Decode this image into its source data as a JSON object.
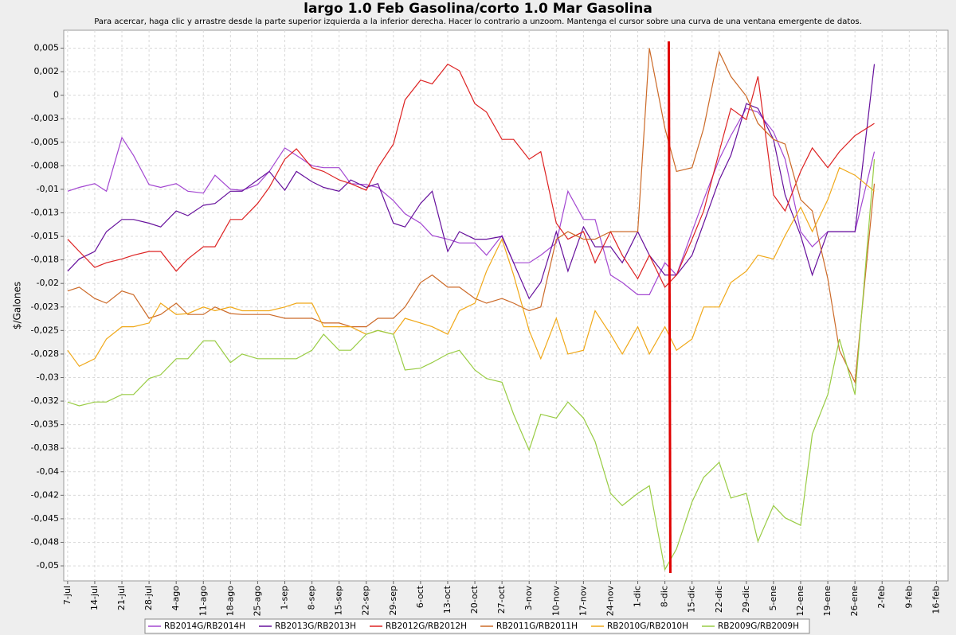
{
  "chart_data": {
    "type": "line",
    "title": "largo 1.0 Feb Gasolina/corto 1.0 Mar Gasolina",
    "subtitle": "Para acercar, haga clic y arrastre desde la parte superior izquierda a la inferior derecha. Hacer lo contrario a unzoom. Mantenga el cursor sobre una curva de una ventana emergente de datos.",
    "y_label": "$/Galones",
    "x": [
      "7-jul",
      "10-jul",
      "14-jul",
      "17-jul",
      "21-jul",
      "24-jul",
      "28-jul",
      "31-jul",
      "4-ago",
      "7-ago",
      "11-ago",
      "14-ago",
      "18-ago",
      "21-ago",
      "25-ago",
      "28-ago",
      "1-sep",
      "4-sep",
      "8-sep",
      "11-sep",
      "15-sep",
      "18-sep",
      "22-sep",
      "25-sep",
      "29-sep",
      "2-oct",
      "6-oct",
      "9-oct",
      "13-oct",
      "16-oct",
      "20-oct",
      "23-oct",
      "27-oct",
      "30-oct",
      "3-nov",
      "6-nov",
      "10-nov",
      "13-nov",
      "17-nov",
      "20-nov",
      "24-nov",
      "27-nov",
      "1-dic",
      "4-dic",
      "8-dic",
      "11-dic",
      "15-dic",
      "18-dic",
      "22-dic",
      "25-dic",
      "29-dic",
      "1-ene",
      "5-ene",
      "8-ene",
      "12-ene",
      "15-ene",
      "19-ene",
      "22-ene",
      "26-ene",
      "31-ene"
    ],
    "series": [
      {
        "name": "RB2014G/RB2014H",
        "color": "#a347d1",
        "values": [
          -0.0102,
          -0.0098,
          -0.0094,
          -0.0102,
          -0.0045,
          -0.0064,
          -0.0095,
          -0.0098,
          -0.0094,
          -0.0102,
          -0.0104,
          -0.0085,
          -0.01,
          -0.0101,
          -0.0095,
          -0.0081,
          -0.0056,
          -0.0064,
          -0.0075,
          -0.0077,
          -0.0077,
          -0.0094,
          -0.0095,
          -0.0098,
          -0.0112,
          -0.0126,
          -0.0136,
          -0.0149,
          -0.0153,
          -0.0157,
          -0.0157,
          -0.017,
          -0.0149,
          -0.0178,
          -0.0178,
          -0.017,
          -0.0157,
          -0.0102,
          -0.0132,
          -0.0132,
          -0.0191,
          -0.0199,
          -0.0212,
          -0.0212,
          -0.0178,
          -0.0191,
          -0.0145,
          -0.0111,
          -0.0068,
          -0.0043,
          -0.0014,
          -0.0018,
          -0.0039,
          -0.0068,
          -0.0145,
          -0.0161,
          -0.0145,
          -0.0145,
          -0.0145,
          -0.006
        ]
      },
      {
        "name": "RB2013G/RB2013H",
        "color": "#66109c",
        "values": [
          -0.0187,
          -0.0174,
          -0.0166,
          -0.0145,
          -0.0132,
          -0.0132,
          -0.0136,
          -0.014,
          -0.0123,
          -0.0128,
          -0.0117,
          -0.0115,
          -0.0102,
          -0.0102,
          -0.009,
          -0.0081,
          -0.0101,
          -0.0081,
          -0.0092,
          -0.0098,
          -0.0102,
          -0.009,
          -0.0098,
          -0.0094,
          -0.0136,
          -0.014,
          -0.0115,
          -0.0102,
          -0.0166,
          -0.0145,
          -0.0153,
          -0.0153,
          -0.015,
          -0.0178,
          -0.0216,
          -0.0199,
          -0.0145,
          -0.0187,
          -0.014,
          -0.0161,
          -0.0161,
          -0.0178,
          -0.0145,
          -0.017,
          -0.0191,
          -0.0191,
          -0.017,
          -0.0136,
          -0.009,
          -0.0064,
          -0.0009,
          -0.0014,
          -0.0047,
          -0.0106,
          -0.0149,
          -0.0191,
          -0.0145,
          -0.0145,
          -0.0145,
          0.0033
        ]
      },
      {
        "name": "RB2012G/RB2012H",
        "color": "#dd2222",
        "values": [
          -0.0153,
          -0.0166,
          -0.0183,
          -0.0178,
          -0.0174,
          -0.017,
          -0.0166,
          -0.0166,
          -0.0187,
          -0.0174,
          -0.0161,
          -0.0161,
          -0.0132,
          -0.0132,
          -0.0115,
          -0.0098,
          -0.0068,
          -0.0057,
          -0.0077,
          -0.0081,
          -0.009,
          -0.0094,
          -0.0101,
          -0.0077,
          -0.0052,
          -0.0005,
          0.0016,
          0.0012,
          0.0033,
          0.0026,
          -0.0009,
          -0.0018,
          -0.0047,
          -0.0047,
          -0.0068,
          -0.006,
          -0.0136,
          -0.0153,
          -0.0145,
          -0.0178,
          -0.0145,
          -0.017,
          -0.0195,
          -0.017,
          -0.0204,
          -0.0191,
          -0.0153,
          -0.0123,
          -0.006,
          -0.0014,
          -0.0026,
          0.002,
          -0.0106,
          -0.0123,
          -0.0081,
          -0.0056,
          -0.0077,
          -0.006,
          -0.0043,
          -0.003
        ]
      },
      {
        "name": "RB2011G/RB2011H",
        "color": "#cc6a28",
        "values": [
          -0.0208,
          -0.0204,
          -0.0216,
          -0.0221,
          -0.0208,
          -0.0212,
          -0.0237,
          -0.0233,
          -0.0221,
          -0.0233,
          -0.0233,
          -0.0225,
          -0.0232,
          -0.0233,
          -0.0233,
          -0.0233,
          -0.0237,
          -0.0237,
          -0.0237,
          -0.0242,
          -0.0242,
          -0.0246,
          -0.0246,
          -0.0237,
          -0.0237,
          -0.0225,
          -0.0199,
          -0.0191,
          -0.0204,
          -0.0204,
          -0.0216,
          -0.0221,
          -0.0216,
          -0.0221,
          -0.0229,
          -0.0225,
          -0.0153,
          -0.0145,
          -0.0153,
          -0.0153,
          -0.0145,
          -0.0145,
          -0.0145,
          0.005,
          -0.0035,
          -0.0081,
          -0.0077,
          -0.0035,
          0.0046,
          0.002,
          -0.0001,
          -0.003,
          -0.0047,
          -0.0052,
          -0.0111,
          -0.0123,
          -0.0195,
          -0.0271,
          -0.0305,
          -0.0094
        ]
      },
      {
        "name": "RB2010G/RB2010H",
        "color": "#f0a818",
        "values": [
          -0.0271,
          -0.0288,
          -0.028,
          -0.0259,
          -0.0246,
          -0.0246,
          -0.0242,
          -0.0221,
          -0.0233,
          -0.0232,
          -0.0225,
          -0.0229,
          -0.0225,
          -0.0229,
          -0.0229,
          -0.0229,
          -0.0225,
          -0.0221,
          -0.0221,
          -0.0246,
          -0.0246,
          -0.0246,
          -0.0254,
          -0.025,
          -0.0254,
          -0.0237,
          -0.0242,
          -0.0246,
          -0.0254,
          -0.0229,
          -0.0221,
          -0.0187,
          -0.0153,
          -0.0191,
          -0.025,
          -0.028,
          -0.0237,
          -0.0275,
          -0.0271,
          -0.0229,
          -0.0254,
          -0.0275,
          -0.0246,
          -0.0275,
          -0.0246,
          -0.0271,
          -0.0259,
          -0.0225,
          -0.0225,
          -0.0199,
          -0.0187,
          -0.017,
          -0.0174,
          -0.0149,
          -0.0119,
          -0.0145,
          -0.0111,
          -0.0077,
          -0.0085,
          -0.0102
        ]
      },
      {
        "name": "RB2009G/RB2009H",
        "color": "#99cc44",
        "values": [
          -0.0326,
          -0.033,
          -0.0326,
          -0.0326,
          -0.0318,
          -0.0318,
          -0.0301,
          -0.0297,
          -0.028,
          -0.028,
          -0.0261,
          -0.0261,
          -0.0284,
          -0.0275,
          -0.028,
          -0.028,
          -0.028,
          -0.028,
          -0.0271,
          -0.0254,
          -0.0271,
          -0.0271,
          -0.0254,
          -0.025,
          -0.0254,
          -0.0292,
          -0.029,
          -0.0284,
          -0.0275,
          -0.0271,
          -0.0292,
          -0.0301,
          -0.0305,
          -0.0339,
          -0.0377,
          -0.0339,
          -0.0343,
          -0.0326,
          -0.0343,
          -0.0368,
          -0.0423,
          -0.0436,
          -0.0423,
          -0.0415,
          -0.0504,
          -0.0482,
          -0.0432,
          -0.0406,
          -0.039,
          -0.0428,
          -0.0423,
          -0.0474,
          -0.0436,
          -0.0449,
          -0.0457,
          -0.036,
          -0.0318,
          -0.0259,
          -0.0318,
          -0.0068
        ]
      }
    ],
    "marker": {
      "x": "9-dic",
      "color": "#e00000"
    },
    "xlim": [
      "6-jul",
      "19-feb"
    ],
    "xticks": [
      "7-jul",
      "14-jul",
      "21-jul",
      "28-jul",
      "4-ago",
      "11-ago",
      "18-ago",
      "25-ago",
      "1-sep",
      "8-sep",
      "15-sep",
      "22-sep",
      "29-sep",
      "6-oct",
      "13-oct",
      "20-oct",
      "27-oct",
      "3-nov",
      "10-nov",
      "17-nov",
      "24-nov",
      "1-dic",
      "8-dic",
      "15-dic",
      "22-dic",
      "29-dic",
      "5-ene",
      "12-ene",
      "19-ene",
      "26-ene",
      "2-feb",
      "9-feb",
      "16-feb"
    ],
    "ylim": [
      -0.0516,
      0.0069
    ],
    "yticks": [
      {
        "value": 0.005,
        "label": "0,005"
      },
      {
        "value": 0.0025,
        "label": "0,002"
      },
      0,
      {
        "value": -0.0025,
        "label": "-0,003"
      },
      {
        "value": -0.005,
        "label": "-0,005"
      },
      {
        "value": -0.0075,
        "label": "-0,008"
      },
      {
        "value": -0.01,
        "label": "-0,01"
      },
      {
        "value": -0.0125,
        "label": "-0,013"
      },
      {
        "value": -0.015,
        "label": "-0,015"
      },
      {
        "value": -0.0175,
        "label": "-0,018"
      },
      {
        "value": -0.02,
        "label": "-0,02"
      },
      {
        "value": -0.0225,
        "label": "-0,023"
      },
      {
        "value": -0.025,
        "label": "-0,025"
      },
      {
        "value": -0.0275,
        "label": "-0,028"
      },
      {
        "value": -0.03,
        "label": "-0,03"
      },
      {
        "value": -0.0325,
        "label": "-0,032"
      },
      {
        "value": -0.035,
        "label": "-0,035"
      },
      {
        "value": -0.0375,
        "label": "-0,038"
      },
      {
        "value": -0.04,
        "label": "-0,04"
      },
      {
        "value": -0.0425,
        "label": "-0,042"
      },
      {
        "value": -0.045,
        "label": "-0,045"
      },
      {
        "value": -0.0475,
        "label": "-0,048"
      },
      {
        "value": -0.05,
        "label": "-0,05"
      }
    ],
    "grid": true
  }
}
